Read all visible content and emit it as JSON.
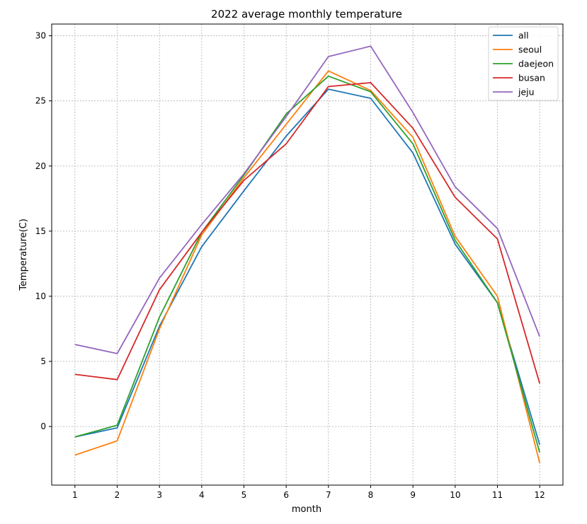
{
  "chart_data": {
    "type": "line",
    "title": "2022 average monthly temperature",
    "xlabel": "month",
    "ylabel": "Temperature(C)",
    "x": [
      1,
      2,
      3,
      4,
      5,
      6,
      7,
      8,
      9,
      10,
      11,
      12
    ],
    "xticks": [
      "1",
      "2",
      "3",
      "4",
      "5",
      "6",
      "7",
      "8",
      "9",
      "10",
      "11",
      "12"
    ],
    "xlim": [
      0.45,
      12.55
    ],
    "yticks": [
      "0",
      "5",
      "10",
      "15",
      "20",
      "25",
      "30"
    ],
    "ylim": [
      -4.5,
      30.9
    ],
    "grid": true,
    "legend_position": "top-right",
    "series": [
      {
        "name": "all",
        "color": "#1f77b4",
        "values": [
          -0.8,
          -0.1,
          7.7,
          13.8,
          18.1,
          22.3,
          25.9,
          25.2,
          21.0,
          14.0,
          9.5,
          -1.4
        ]
      },
      {
        "name": "seoul",
        "color": "#ff7f0e",
        "values": [
          -2.2,
          -1.1,
          7.5,
          14.7,
          19.1,
          23.2,
          27.3,
          25.8,
          22.2,
          14.6,
          10.0,
          -2.8
        ]
      },
      {
        "name": "daejeon",
        "color": "#2ca02c",
        "values": [
          -0.8,
          0.1,
          8.4,
          14.9,
          19.3,
          24.0,
          26.9,
          25.7,
          21.7,
          14.3,
          9.5,
          -2.0
        ]
      },
      {
        "name": "busan",
        "color": "#d62728",
        "values": [
          4.0,
          3.6,
          10.5,
          14.9,
          18.9,
          21.7,
          26.1,
          26.4,
          22.9,
          17.6,
          14.4,
          3.3
        ]
      },
      {
        "name": "jeju",
        "color": "#9467bd",
        "values": [
          6.3,
          5.6,
          11.4,
          15.5,
          19.4,
          23.8,
          28.4,
          29.2,
          24.1,
          18.4,
          15.2,
          6.9
        ]
      }
    ]
  }
}
